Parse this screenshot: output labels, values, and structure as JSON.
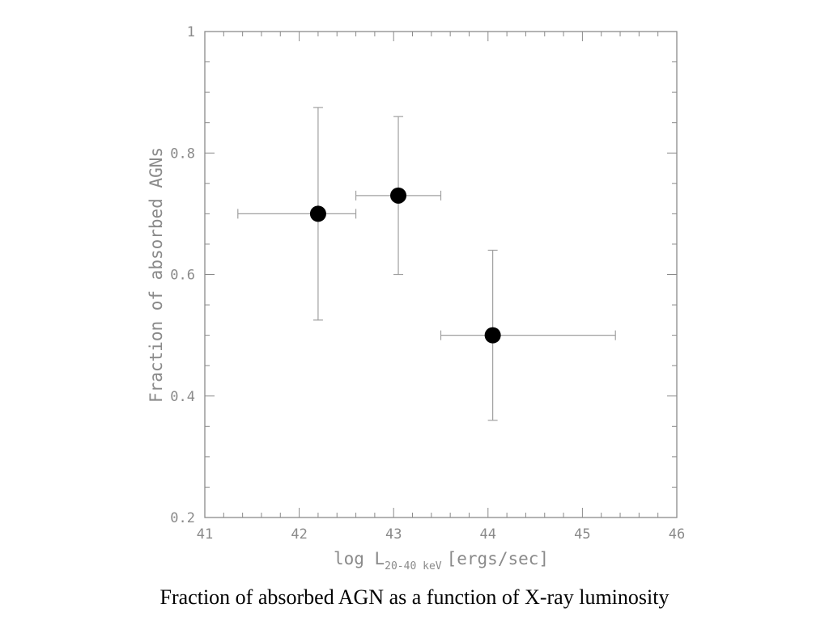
{
  "caption": "Fraction of absorbed AGN as a function of X-ray luminosity",
  "chart_data": {
    "type": "scatter",
    "title": "",
    "xlabel": {
      "prefix": "log L",
      "subscript": "20-40 keV",
      "suffix": "[ergs/sec]"
    },
    "ylabel": "Fraction of absorbed AGNs",
    "xlim": [
      41,
      46
    ],
    "ylim": [
      0.2,
      1.0
    ],
    "xticks": [
      "41",
      "42",
      "43",
      "44",
      "45",
      "46"
    ],
    "yticks": [
      "0.2",
      "0.4",
      "0.6",
      "0.8",
      "1"
    ],
    "grid": false,
    "points": [
      {
        "x": 42.2,
        "y": 0.7,
        "xerr": [
          41.35,
          42.6
        ],
        "yerr": [
          0.525,
          0.875
        ]
      },
      {
        "x": 43.05,
        "y": 0.73,
        "xerr": [
          42.6,
          43.5
        ],
        "yerr": [
          0.6,
          0.86
        ]
      },
      {
        "x": 44.05,
        "y": 0.5,
        "xerr": [
          43.5,
          45.35
        ],
        "yerr": [
          0.36,
          0.64
        ]
      }
    ]
  }
}
